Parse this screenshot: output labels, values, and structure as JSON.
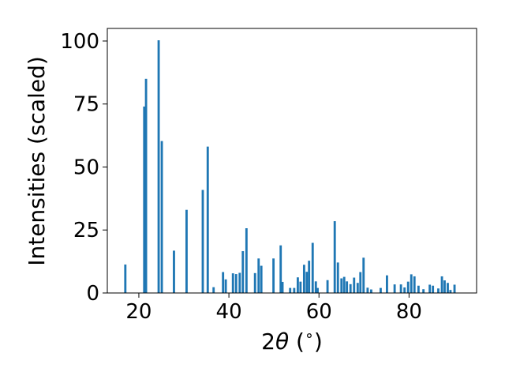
{
  "chart_data": {
    "type": "bar",
    "xlabel_pre": "2",
    "xlabel_theta": "θ",
    "xlabel_post": " (",
    "xlabel_deg": "∘",
    "xlabel_close": ")",
    "ylabel": "Intensities (scaled)",
    "xlim": [
      13,
      95
    ],
    "ylim": [
      0,
      105
    ],
    "xticks": [
      20,
      40,
      60,
      80
    ],
    "yticks": [
      0,
      25,
      50,
      75,
      100
    ],
    "bar_color": "#1f77b4",
    "bar_width_deg": 0.5,
    "x": [
      17.0,
      21.2,
      21.6,
      24.4,
      25.1,
      27.8,
      30.6,
      34.2,
      35.3,
      36.6,
      38.7,
      39.3,
      40.9,
      41.6,
      42.4,
      43.1,
      43.9,
      45.8,
      46.6,
      47.2,
      49.9,
      51.5,
      51.9,
      53.6,
      54.5,
      55.3,
      55.9,
      56.7,
      57.3,
      57.8,
      58.6,
      59.3,
      59.7,
      61.9,
      63.5,
      64.2,
      65.0,
      65.6,
      66.2,
      67.0,
      67.8,
      68.6,
      69.2,
      69.9,
      70.8,
      71.6,
      73.7,
      75.1,
      76.8,
      78.2,
      79.0,
      79.8,
      80.5,
      81.2,
      82.1,
      83.2,
      84.6,
      85.3,
      86.5,
      87.3,
      87.9,
      88.6,
      89.2,
      90.1
    ],
    "values": [
      11.3,
      74.0,
      85.0,
      100.3,
      60.3,
      16.8,
      33.0,
      40.9,
      58.1,
      2.3,
      8.3,
      5.4,
      7.8,
      7.5,
      8.0,
      16.6,
      25.7,
      7.9,
      13.7,
      10.8,
      13.7,
      18.9,
      4.4,
      2.0,
      2.0,
      6.2,
      4.5,
      11.2,
      8.4,
      12.8,
      19.9,
      4.6,
      2.0,
      5.1,
      28.5,
      12.1,
      5.8,
      6.4,
      4.6,
      3.5,
      6.1,
      4.0,
      8.3,
      14.0,
      2.1,
      1.4,
      2.0,
      7.0,
      3.4,
      3.4,
      2.2,
      4.5,
      7.4,
      6.6,
      2.9,
      1.5,
      3.3,
      2.9,
      1.8,
      6.6,
      5.0,
      4.0,
      1.2,
      3.3
    ]
  }
}
